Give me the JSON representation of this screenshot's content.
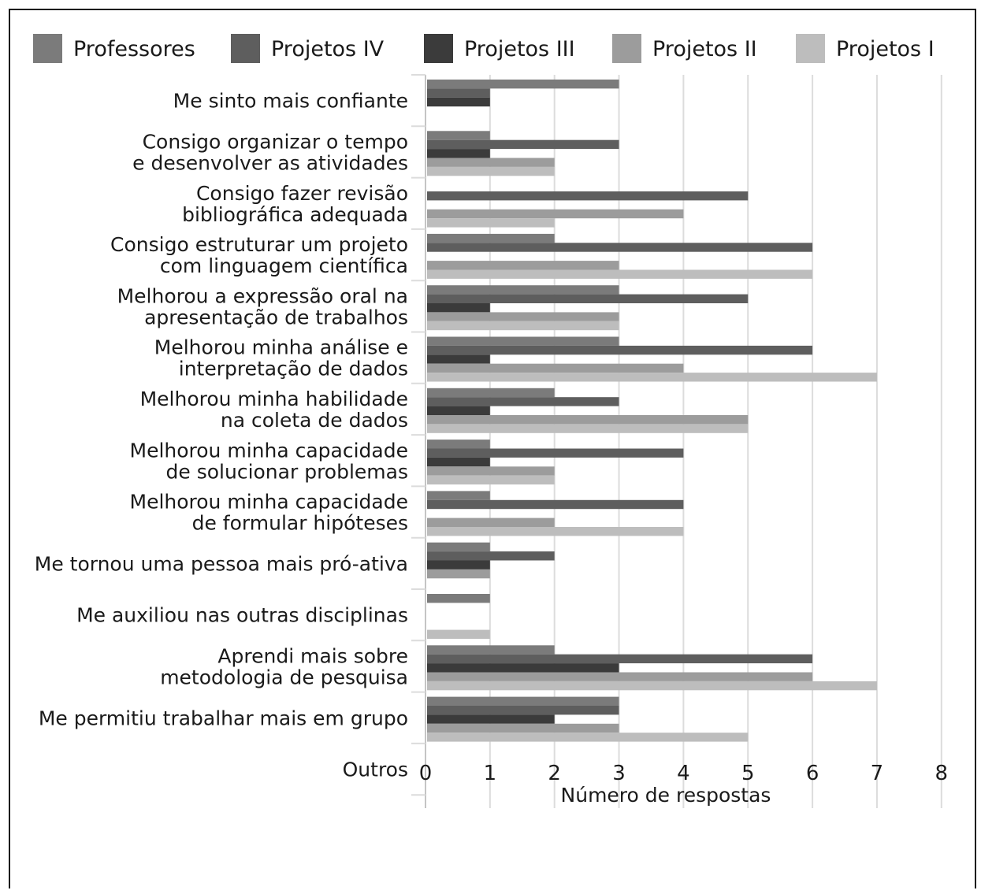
{
  "chart_data": {
    "type": "bar",
    "orientation": "horizontal",
    "xlabel": "Número de respostas",
    "xlim": [
      0,
      8
    ],
    "xticks": [
      0,
      1,
      2,
      3,
      4,
      5,
      6,
      7,
      8
    ],
    "grid": true,
    "legend_position": "top",
    "categories": [
      "Me sinto mais confiante",
      "Consigo organizar o tempo e desenvolver as atividades",
      "Consigo fazer revisão bibliográfica  adequada",
      "Consigo estruturar um projeto com linguagem científica",
      "Melhorou a expressão oral na apresentação de trabalhos",
      "Melhorou minha análise e interpretação de dados",
      "Melhorou minha habilidade na coleta de dados",
      "Melhorou minha capacidade de solucionar problemas",
      "Melhorou minha capacidade de formular hipóteses",
      "Me tornou uma pessoa mais pró-ativa",
      "Me auxiliou nas outras disciplinas",
      "Aprendi mais sobre metodologia de pesquisa",
      "Me permitiu trabalhar mais em grupo",
      "Outros"
    ],
    "category_lines": [
      [
        "Me sinto mais confiante"
      ],
      [
        "Consigo organizar o tempo",
        "e desenvolver as atividades"
      ],
      [
        "Consigo fazer revisão",
        "bibliográfica  adequada"
      ],
      [
        "Consigo estruturar um projeto",
        "com linguagem científica"
      ],
      [
        "Melhorou a expressão oral na",
        "apresentação de trabalhos"
      ],
      [
        "Melhorou minha análise e",
        "interpretação de dados"
      ],
      [
        "Melhorou minha habilidade",
        "na coleta de dados"
      ],
      [
        "Melhorou minha capacidade",
        "de solucionar problemas"
      ],
      [
        "Melhorou minha capacidade",
        "de formular hipóteses"
      ],
      [
        "Me tornou uma pessoa mais pró-ativa"
      ],
      [
        "Me auxiliou nas outras disciplinas"
      ],
      [
        "Aprendi mais sobre",
        "metodologia de pesquisa"
      ],
      [
        "Me permitiu trabalhar mais em grupo"
      ],
      [
        "Outros"
      ]
    ],
    "series": [
      {
        "name": "Professores",
        "color": "#7b7b7b",
        "values": [
          3,
          1,
          0,
          2,
          3,
          3,
          2,
          1,
          1,
          1,
          1,
          2,
          3,
          0
        ]
      },
      {
        "name": "Projetos IV",
        "color": "#5e5e5e",
        "values": [
          1,
          3,
          5,
          6,
          5,
          6,
          3,
          4,
          4,
          2,
          0,
          6,
          3,
          0
        ]
      },
      {
        "name": "Projetos III",
        "color": "#3b3b3b",
        "values": [
          1,
          1,
          0,
          0,
          1,
          1,
          1,
          1,
          0,
          1,
          0,
          3,
          2,
          0
        ]
      },
      {
        "name": "Projetos II",
        "color": "#9c9c9c",
        "values": [
          0,
          2,
          4,
          3,
          3,
          4,
          5,
          2,
          2,
          1,
          0,
          6,
          3,
          0
        ]
      },
      {
        "name": "Projetos I",
        "color": "#bdbdbd",
        "values": [
          0,
          2,
          2,
          6,
          3,
          7,
          5,
          2,
          4,
          0,
          1,
          7,
          5,
          0
        ]
      }
    ]
  }
}
